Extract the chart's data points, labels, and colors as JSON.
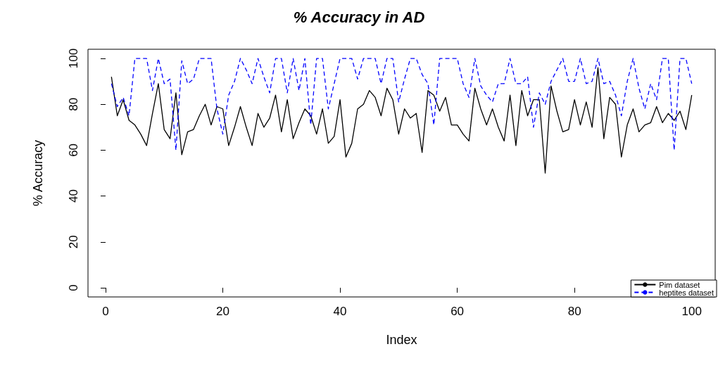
{
  "chart_data": {
    "type": "line",
    "title": "% Accuracy in AD",
    "xlabel": "Index",
    "ylabel": "% Accuracy",
    "x": [
      1,
      2,
      3,
      4,
      5,
      6,
      7,
      8,
      9,
      10,
      11,
      12,
      13,
      14,
      15,
      16,
      17,
      18,
      19,
      20,
      21,
      22,
      23,
      24,
      25,
      26,
      27,
      28,
      29,
      30,
      31,
      32,
      33,
      34,
      35,
      36,
      37,
      38,
      39,
      40,
      41,
      42,
      43,
      44,
      45,
      46,
      47,
      48,
      49,
      50,
      51,
      52,
      53,
      54,
      55,
      56,
      57,
      58,
      59,
      60,
      61,
      62,
      63,
      64,
      65,
      66,
      67,
      68,
      69,
      70,
      71,
      72,
      73,
      74,
      75,
      76,
      77,
      78,
      79,
      80,
      81,
      82,
      83,
      84,
      85,
      86,
      87,
      88,
      89,
      90,
      91,
      92,
      93,
      94,
      95,
      96,
      97,
      98,
      99,
      100
    ],
    "series": [
      {
        "name": "Pim dataset",
        "color": "#000000",
        "line_style": "solid",
        "values": [
          92,
          75,
          82,
          73,
          71,
          67,
          62,
          76,
          89,
          69,
          65,
          85,
          58,
          68,
          69,
          75,
          80,
          71,
          79,
          78,
          62,
          70,
          79,
          70,
          62,
          76,
          70,
          74,
          84,
          68,
          82,
          65,
          72,
          78,
          75,
          67,
          78,
          63,
          66,
          82,
          57,
          63,
          78,
          80,
          86,
          83,
          75,
          87,
          82,
          67,
          78,
          74,
          76,
          59,
          86,
          84,
          77,
          83,
          71,
          71,
          67,
          64,
          87,
          78,
          71,
          78,
          70,
          64,
          84,
          62,
          86,
          75,
          82,
          82,
          50,
          88,
          77,
          68,
          69,
          82,
          71,
          81,
          70,
          96,
          65,
          83,
          80,
          57,
          71,
          78,
          68,
          71,
          72,
          79,
          72,
          76,
          73,
          77,
          69,
          84
        ]
      },
      {
        "name": "heptites dataset",
        "color": "#0000ff",
        "line_style": "dashed",
        "values": [
          89,
          79,
          83,
          75,
          100,
          100,
          100,
          86,
          100,
          89,
          91,
          60,
          99,
          89,
          91,
          100,
          100,
          100,
          78,
          67,
          84,
          90,
          100,
          95,
          89,
          100,
          92,
          85,
          100,
          100,
          85,
          100,
          86,
          100,
          71,
          100,
          100,
          78,
          89,
          100,
          100,
          100,
          91,
          100,
          100,
          100,
          89,
          100,
          100,
          81,
          91,
          100,
          100,
          93,
          89,
          71,
          100,
          100,
          100,
          100,
          89,
          83,
          100,
          88,
          84,
          81,
          89,
          89,
          100,
          89,
          89,
          92,
          70,
          85,
          80,
          90,
          95,
          100,
          90,
          90,
          100,
          89,
          90,
          100,
          89,
          90,
          84,
          75,
          90,
          100,
          87,
          78,
          89,
          82,
          100,
          100,
          60,
          100,
          100,
          89
        ]
      }
    ],
    "xlim": [
      -3,
      104
    ],
    "xticks": [
      0,
      20,
      40,
      60,
      80,
      100
    ],
    "ylim": [
      -4,
      104
    ],
    "yticks": [
      0,
      20,
      40,
      60,
      80,
      100
    ],
    "grid": false,
    "legend": "bottom right",
    "marker": "none"
  }
}
